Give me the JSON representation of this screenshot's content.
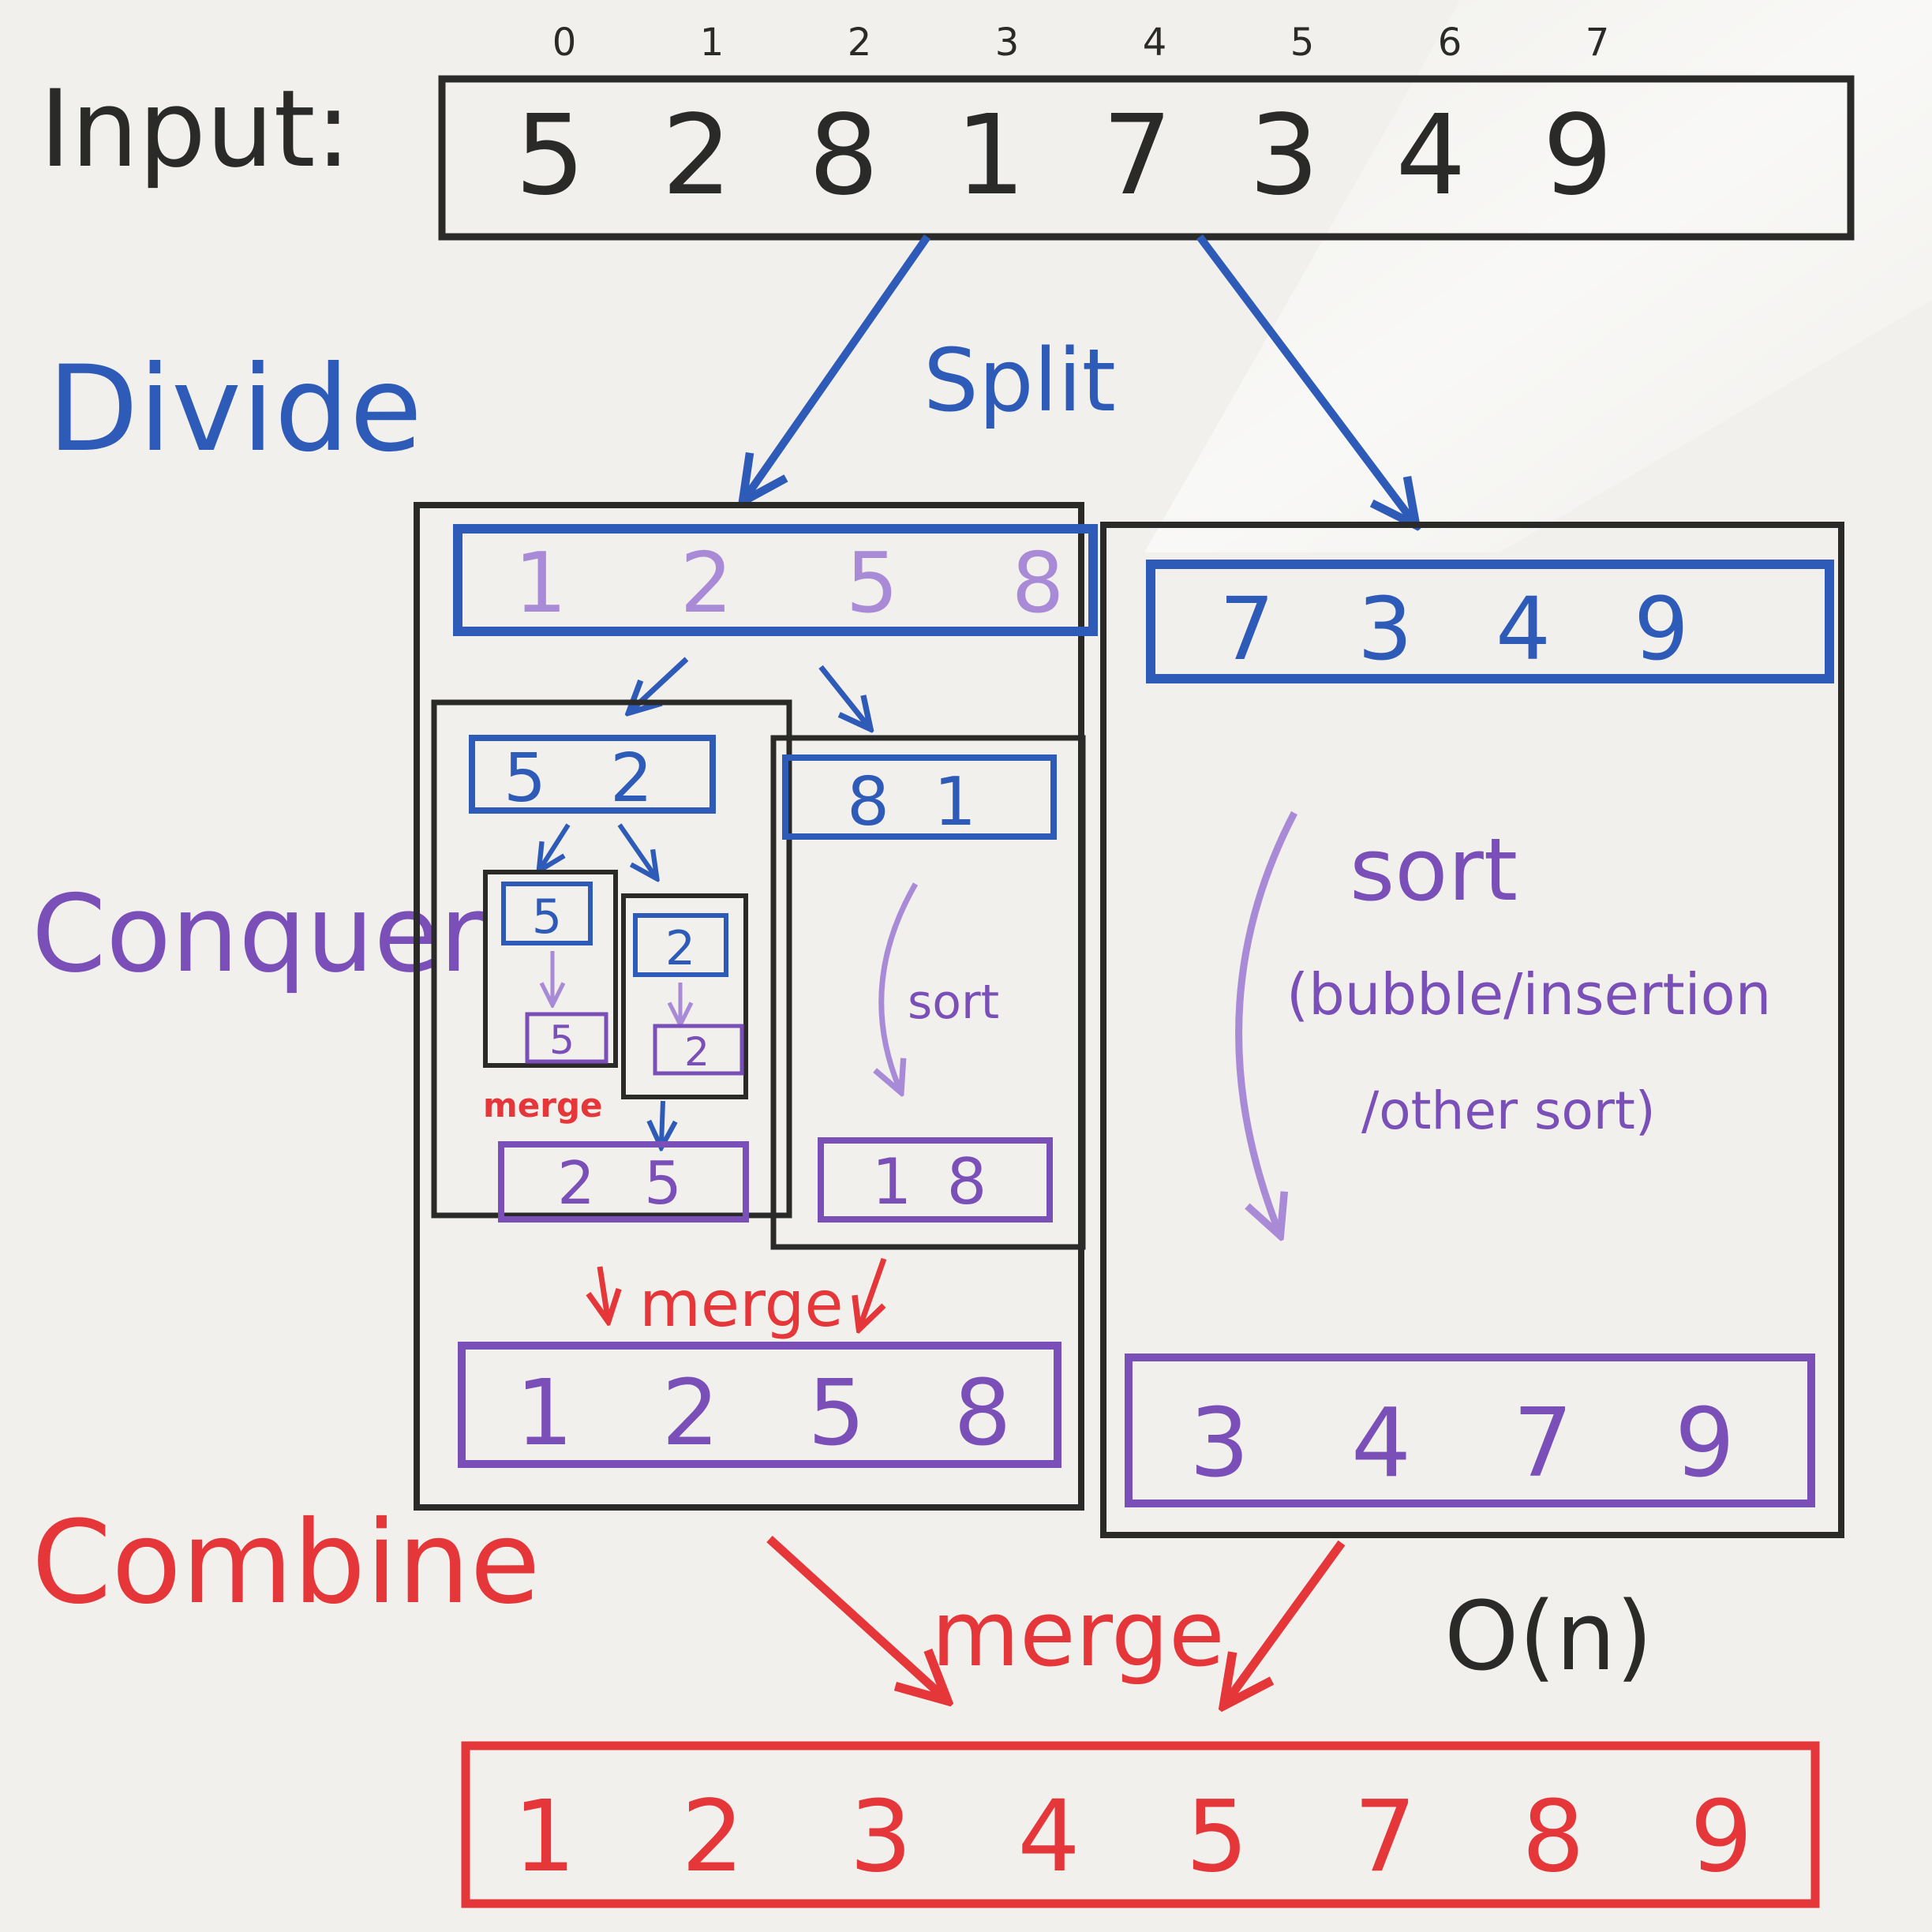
{
  "colors": {
    "black": "#2a2a28",
    "blue": "#2f5bb8",
    "purple": "#7a4fb8",
    "light_purple": "#a98ad6",
    "red": "#e5363a",
    "board": "#f1f0ec"
  },
  "labels": {
    "input": "Input:",
    "divide": "Divide",
    "conquer": "Conquer",
    "combine": "Combine",
    "split": "Split",
    "sort_small": "sort",
    "sort_big": "sort",
    "sort_note_1": "(bubble/insertion",
    "sort_note_2": "/other sort)",
    "merge_small": "merge",
    "merge_mid": "merge",
    "merge_big": "merge",
    "complexity": "O(n)"
  },
  "input": {
    "indices": [
      "0",
      "1",
      "2",
      "3",
      "4",
      "5",
      "6",
      "7"
    ],
    "values": [
      "5",
      "2",
      "8",
      "1",
      "7",
      "3",
      "4",
      "9"
    ]
  },
  "left_half": {
    "sorted": [
      "1",
      "2",
      "5",
      "8"
    ],
    "pair_a": [
      "5",
      "2"
    ],
    "pair_b": [
      "8",
      "1"
    ],
    "single_a": "5",
    "single_b": "2",
    "single_a_low": "5",
    "single_b_low": "2",
    "merged_a": [
      "2",
      "5"
    ],
    "sorted_b": [
      "1",
      "8"
    ],
    "result": [
      "1",
      "2",
      "5",
      "8"
    ]
  },
  "right_half": {
    "values": [
      "7",
      "3",
      "4",
      "9"
    ],
    "result": [
      "3",
      "4",
      "7",
      "9"
    ]
  },
  "output": {
    "values": [
      "1",
      "2",
      "3",
      "4",
      "5",
      "7",
      "8",
      "9"
    ]
  }
}
